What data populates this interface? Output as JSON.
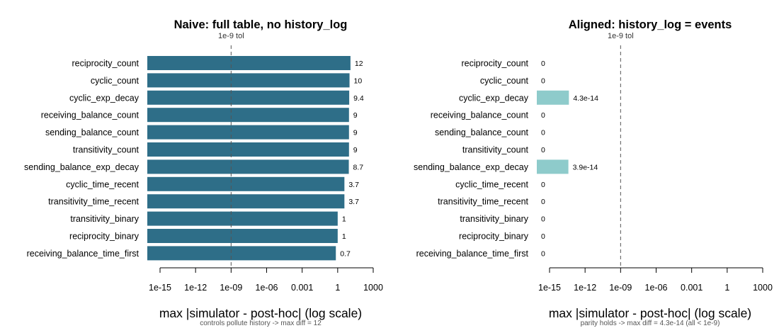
{
  "chart_data": [
    {
      "type": "bar",
      "orientation": "horizontal",
      "title": "Naive: full table, no history_log",
      "xlabel": "max |simulator - post-hoc|  (log scale)",
      "caption": "controls pollute history  ->  max diff = 12",
      "reference_line": {
        "value": 1e-09,
        "label": "1e-9 tol"
      },
      "xscale": "log",
      "xlim": [
        1e-15,
        1000
      ],
      "xticks": [
        {
          "value": 1e-15,
          "label": "1e-15"
        },
        {
          "value": 1e-12,
          "label": "1e-12"
        },
        {
          "value": 1e-09,
          "label": "1e-09"
        },
        {
          "value": 1e-06,
          "label": "1e-06"
        },
        {
          "value": 0.001,
          "label": "0.001"
        },
        {
          "value": 1,
          "label": "1"
        },
        {
          "value": 1000,
          "label": "1000"
        }
      ],
      "bar_color": "#2e6e88",
      "categories": [
        "reciprocity_count",
        "cyclic_count",
        "cyclic_exp_decay",
        "receiving_balance_count",
        "sending_balance_count",
        "transitivity_count",
        "sending_balance_exp_decay",
        "cyclic_time_recent",
        "transitivity_time_recent",
        "transitivity_binary",
        "reciprocity_binary",
        "receiving_balance_time_first"
      ],
      "values": [
        12,
        10,
        9.4,
        9,
        9,
        9,
        8.7,
        3.7,
        3.7,
        1,
        1,
        0.7
      ],
      "value_labels": [
        "12",
        "10",
        "9.4",
        "9",
        "9",
        "9",
        "8.7",
        "3.7",
        "3.7",
        "1",
        "1",
        "0.7"
      ]
    },
    {
      "type": "bar",
      "orientation": "horizontal",
      "title": "Aligned: history_log = events",
      "xlabel": "max |simulator - post-hoc|  (log scale)",
      "caption": "parity holds  ->  max diff = 4.3e-14  (all < 1e-9)",
      "reference_line": {
        "value": 1e-09,
        "label": "1e-9 tol"
      },
      "xscale": "log",
      "xlim": [
        1e-15,
        1000
      ],
      "xticks": [
        {
          "value": 1e-15,
          "label": "1e-15"
        },
        {
          "value": 1e-12,
          "label": "1e-12"
        },
        {
          "value": 1e-09,
          "label": "1e-09"
        },
        {
          "value": 1e-06,
          "label": "1e-06"
        },
        {
          "value": 0.001,
          "label": "0.001"
        },
        {
          "value": 1,
          "label": "1"
        },
        {
          "value": 1000,
          "label": "1000"
        }
      ],
      "bar_color": "#8ecbcb",
      "categories": [
        "reciprocity_count",
        "cyclic_count",
        "cyclic_exp_decay",
        "receiving_balance_count",
        "sending_balance_count",
        "transitivity_count",
        "sending_balance_exp_decay",
        "cyclic_time_recent",
        "transitivity_time_recent",
        "transitivity_binary",
        "reciprocity_binary",
        "receiving_balance_time_first"
      ],
      "values": [
        0,
        0,
        4.3e-14,
        0,
        0,
        0,
        3.9e-14,
        0,
        0,
        0,
        0,
        0
      ],
      "value_labels": [
        "0",
        "0",
        "4.3e-14",
        "0",
        "0",
        "0",
        "3.9e-14",
        "0",
        "0",
        "0",
        "0",
        "0"
      ]
    }
  ]
}
